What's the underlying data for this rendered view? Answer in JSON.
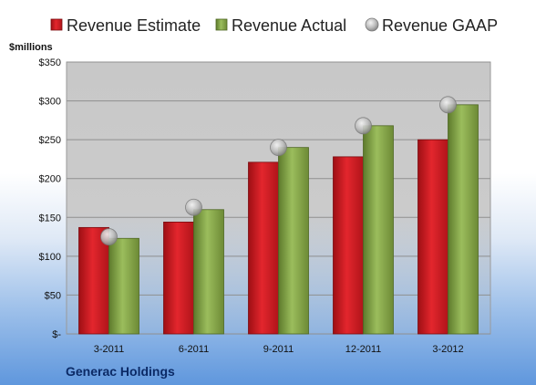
{
  "chart_data": {
    "type": "bar",
    "title": "",
    "xlabel": "",
    "ylabel": "$millions",
    "footer_label": "Generac Holdings",
    "categories": [
      "3-2011",
      "6-2011",
      "9-2011",
      "12-2011",
      "3-2012"
    ],
    "series": [
      {
        "name": "Revenue Estimate",
        "kind": "bar",
        "color": "#d8232a",
        "values": [
          137,
          144,
          221,
          228,
          250
        ]
      },
      {
        "name": "Revenue Actual",
        "kind": "bar",
        "color": "#8aab4f",
        "values": [
          123,
          160,
          240,
          268,
          295
        ]
      },
      {
        "name": "Revenue GAAP",
        "kind": "marker",
        "color": "#bdbdbd",
        "values": [
          125,
          163,
          240,
          268,
          295
        ]
      }
    ],
    "ylim": [
      0,
      350
    ],
    "y_ticks": [
      0,
      50,
      100,
      150,
      200,
      250,
      300,
      350
    ],
    "y_tick_labels": [
      "$-",
      "$50",
      "$100",
      "$150",
      "$200",
      "$250",
      "$300",
      "$350"
    ],
    "grid": true,
    "legend_position": "top"
  }
}
